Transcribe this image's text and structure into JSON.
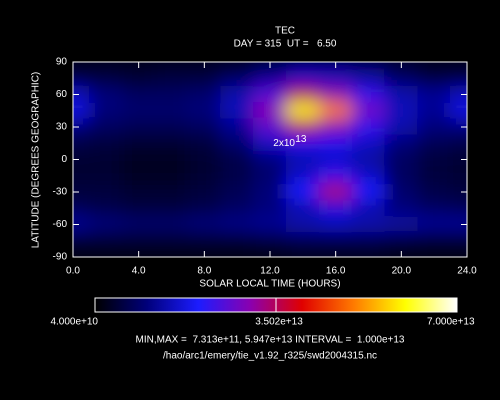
{
  "chart_data": {
    "type": "heatmap",
    "title": "TEC",
    "subtitle": "DAY = 315  UT =   6.50",
    "xlabel": "SOLAR LOCAL TIME (HOURS)",
    "ylabel": "LATITUDE (DEGREES GEOGRAPHIC)",
    "x": [
      0,
      2,
      4,
      6,
      8,
      10,
      12,
      14,
      16,
      18,
      20,
      22,
      24
    ],
    "y": [
      90,
      75,
      60,
      45,
      30,
      15,
      0,
      -15,
      -30,
      -45,
      -60,
      -75,
      -90
    ],
    "z": [
      [
        3000000000000.0,
        3000000000000.0,
        3000000000000.0,
        3000000000000.0,
        3000000000000.0,
        3000000000000.0,
        5000000000000.0,
        8000000000000.0,
        8000000000000.0,
        6000000000000.0,
        4000000000000.0,
        3000000000000.0,
        3000000000000.0
      ],
      [
        5000000000000.0,
        5000000000000.0,
        4000000000000.0,
        5000000000000.0,
        5000000000000.0,
        8000000000000.0,
        12000000000000.0,
        16000000000000.0,
        15000000000000.0,
        13000000000000.0,
        8000000000000.0,
        5000000000000.0,
        5000000000000.0
      ],
      [
        15000000000000.0,
        10000000000000.0,
        8000000000000.0,
        8000000000000.0,
        9000000000000.0,
        14000000000000.0,
        25000000000000.0,
        35000000000000.0,
        30000000000000.0,
        22000000000000.0,
        14000000000000.0,
        12000000000000.0,
        15000000000000.0
      ],
      [
        18000000000000.0,
        10000000000000.0,
        9000000000000.0,
        9000000000000.0,
        10000000000000.0,
        15000000000000.0,
        30000000000000.0,
        59000000000000.0,
        50000000000000.0,
        28000000000000.0,
        15000000000000.0,
        12000000000000.0,
        18000000000000.0
      ],
      [
        10000000000000.0,
        8000000000000.0,
        7000000000000.0,
        7000000000000.0,
        8000000000000.0,
        12000000000000.0,
        26000000000000.0,
        35000000000000.0,
        30000000000000.0,
        22000000000000.0,
        14000000000000.0,
        10000000000000.0,
        10000000000000.0
      ],
      [
        6000000000000.0,
        5000000000000.0,
        4000000000000.0,
        4000000000000.0,
        5000000000000.0,
        9000000000000.0,
        16000000000000.0,
        19000000000000.0,
        19000000000000.0,
        16000000000000.0,
        10000000000000.0,
        7000000000000.0,
        6000000000000.0
      ],
      [
        4000000000000.0,
        4000000000000.0,
        3000000000000.0,
        3000000000000.0,
        4000000000000.0,
        6000000000000.0,
        10000000000000.0,
        14000000000000.0,
        16000000000000.0,
        13000000000000.0,
        8000000000000.0,
        5000000000000.0,
        4000000000000.0
      ],
      [
        4000000000000.0,
        4000000000000.0,
        3000000000000.0,
        3000000000000.0,
        4000000000000.0,
        6000000000000.0,
        9000000000000.0,
        16000000000000.0,
        22000000000000.0,
        16000000000000.0,
        8000000000000.0,
        5000000000000.0,
        4000000000000.0
      ],
      [
        5000000000000.0,
        5000000000000.0,
        4000000000000.0,
        4000000000000.0,
        5000000000000.0,
        7000000000000.0,
        10000000000000.0,
        20000000000000.0,
        34000000000000.0,
        20000000000000.0,
        9000000000000.0,
        6000000000000.0,
        5000000000000.0
      ],
      [
        7000000000000.0,
        6000000000000.0,
        5000000000000.0,
        5000000000000.0,
        6000000000000.0,
        8000000000000.0,
        10000000000000.0,
        14000000000000.0,
        18000000000000.0,
        14000000000000.0,
        10000000000000.0,
        8000000000000.0,
        7000000000000.0
      ],
      [
        12000000000000.0,
        10000000000000.0,
        9000000000000.0,
        9000000000000.0,
        10000000000000.0,
        11000000000000.0,
        12000000000000.0,
        14000000000000.0,
        15000000000000.0,
        14000000000000.0,
        13000000000000.0,
        12000000000000.0,
        12000000000000.0
      ],
      [
        4000000000000.0,
        4000000000000.0,
        4000000000000.0,
        4000000000000.0,
        4000000000000.0,
        4000000000000.0,
        5000000000000.0,
        6000000000000.0,
        6000000000000.0,
        6000000000000.0,
        5000000000000.0,
        4000000000000.0,
        4000000000000.0
      ],
      [
        2000000000000.0,
        2000000000000.0,
        2000000000000.0,
        2000000000000.0,
        2000000000000.0,
        2000000000000.0,
        2000000000000.0,
        3000000000000.0,
        3000000000000.0,
        3000000000000.0,
        2000000000000.0,
        2000000000000.0,
        2000000000000.0
      ]
    ],
    "xlim": [
      0,
      24
    ],
    "ylim": [
      -90,
      90
    ],
    "xticks": [
      {
        "value": 0,
        "label": "0.0"
      },
      {
        "value": 4,
        "label": "4.0"
      },
      {
        "value": 8,
        "label": "8.0"
      },
      {
        "value": 12,
        "label": "12.0"
      },
      {
        "value": 16,
        "label": "16.0"
      },
      {
        "value": 20,
        "label": "20.0"
      },
      {
        "value": 24,
        "label": "24.0"
      }
    ],
    "yticks": [
      90,
      60,
      30,
      0,
      -30,
      -60,
      -90
    ],
    "colorscale": [
      "#000000",
      "#00007a",
      "#1c1cff",
      "#8a00b0",
      "#e00000",
      "#ff7a00",
      "#ffff00",
      "#ffffff"
    ],
    "clim": [
      40000000000.0,
      70000000000000.0
    ],
    "cticks": [
      {
        "value": 40000000000.0,
        "label": "4.000e+10"
      },
      {
        "value": 35020000000000.0,
        "label": "3.502e+13"
      },
      {
        "value": 70000000000000.0,
        "label": "7.000e+13"
      }
    ],
    "annotation": {
      "text": "2x10",
      "exponent": "13"
    },
    "stats": "MIN,MAX =  7.313e+11, 5.947e+13 INTERVAL =  1.000e+13",
    "file": "/hao/arc1/emery/tie_v1.92_r325/swd2004315.nc"
  }
}
